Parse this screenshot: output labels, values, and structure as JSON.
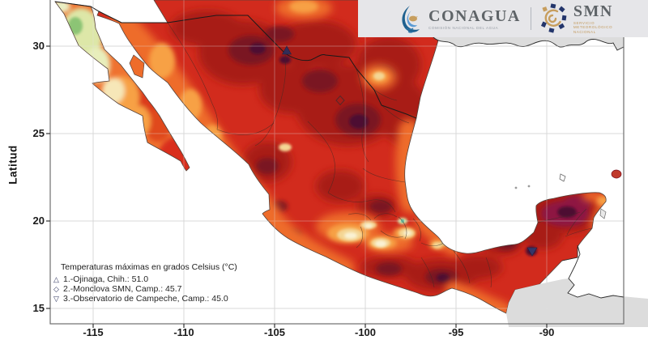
{
  "header": {
    "conagua_name": "CONAGUA",
    "conagua_subtitle": "COMISIÓN NACIONAL DEL AGUA",
    "smn_name": "SMN",
    "smn_subtitle": "SERVICIO METEOROLÓGICO NACIONAL"
  },
  "axes": {
    "y_label": "Latitud",
    "x_tick_labels": [
      "-115",
      "-110",
      "-105",
      "-100",
      "-95",
      "-90"
    ],
    "y_tick_labels": [
      "30",
      "25",
      "20",
      "15"
    ]
  },
  "legend": {
    "title": "Temperaturas máximas en grados Celsius (°C)",
    "items": [
      {
        "symbol": "△",
        "label": "1.-Ojinaga, Chih.: 51.0"
      },
      {
        "symbol": "◇",
        "label": "2.-Monclova SMN, Camp.: 45.7"
      },
      {
        "symbol": "▽",
        "label": "3.-Observatorio de Campeche, Camp.: 45.0"
      }
    ]
  },
  "chart_data": {
    "type": "heatmap",
    "title": "Temperaturas máximas en grados Celsius (°C)",
    "ylabel": "Latitud",
    "x_ticks": [
      -115,
      -110,
      -105,
      -100,
      -95,
      -90
    ],
    "y_ticks": [
      30,
      25,
      20,
      15
    ],
    "xlim": [
      -117.4,
      -85.8
    ],
    "ylim": [
      14.1,
      32.6
    ],
    "units": "°C",
    "grid": true,
    "records": [
      {
        "rank": 1,
        "station": "Ojinaga, Chih.",
        "value": 51.0,
        "marker": "triangle-up",
        "approx_lon": -104.4,
        "approx_lat": 29.6
      },
      {
        "rank": 2,
        "station": "Monclova SMN, Camp.",
        "value": 45.7,
        "marker": "diamond",
        "approx_lon": -101.4,
        "approx_lat": 26.9
      },
      {
        "rank": 3,
        "station": "Observatorio de Campeche, Camp.",
        "value": 45.0,
        "marker": "triangle-down",
        "approx_lon": -90.7,
        "approx_lat": 19.3
      }
    ],
    "palette": {
      "base_red": "#d22b1d",
      "dark_red": "#a81a16",
      "maroon": "#7a1220",
      "magenta": "#8e1243",
      "deep_purple": "#4e0e33",
      "orange": "#ee6c2a",
      "amber": "#f7a145",
      "yellow": "#f4d694",
      "cream": "#faf2d4",
      "pale_green": "#cfe4a4",
      "green": "#8cc474",
      "teal": "#5ec09e",
      "outside_land_gray": "#dcdcdc",
      "ocean_white": "#ffffff",
      "grid_gray": "#d6d6d6",
      "marker_navy": "#2a2f5e",
      "brand_band": "#e6e6e9",
      "brand_blue": "#1f618f",
      "brand_tan": "#c79e5e"
    }
  }
}
